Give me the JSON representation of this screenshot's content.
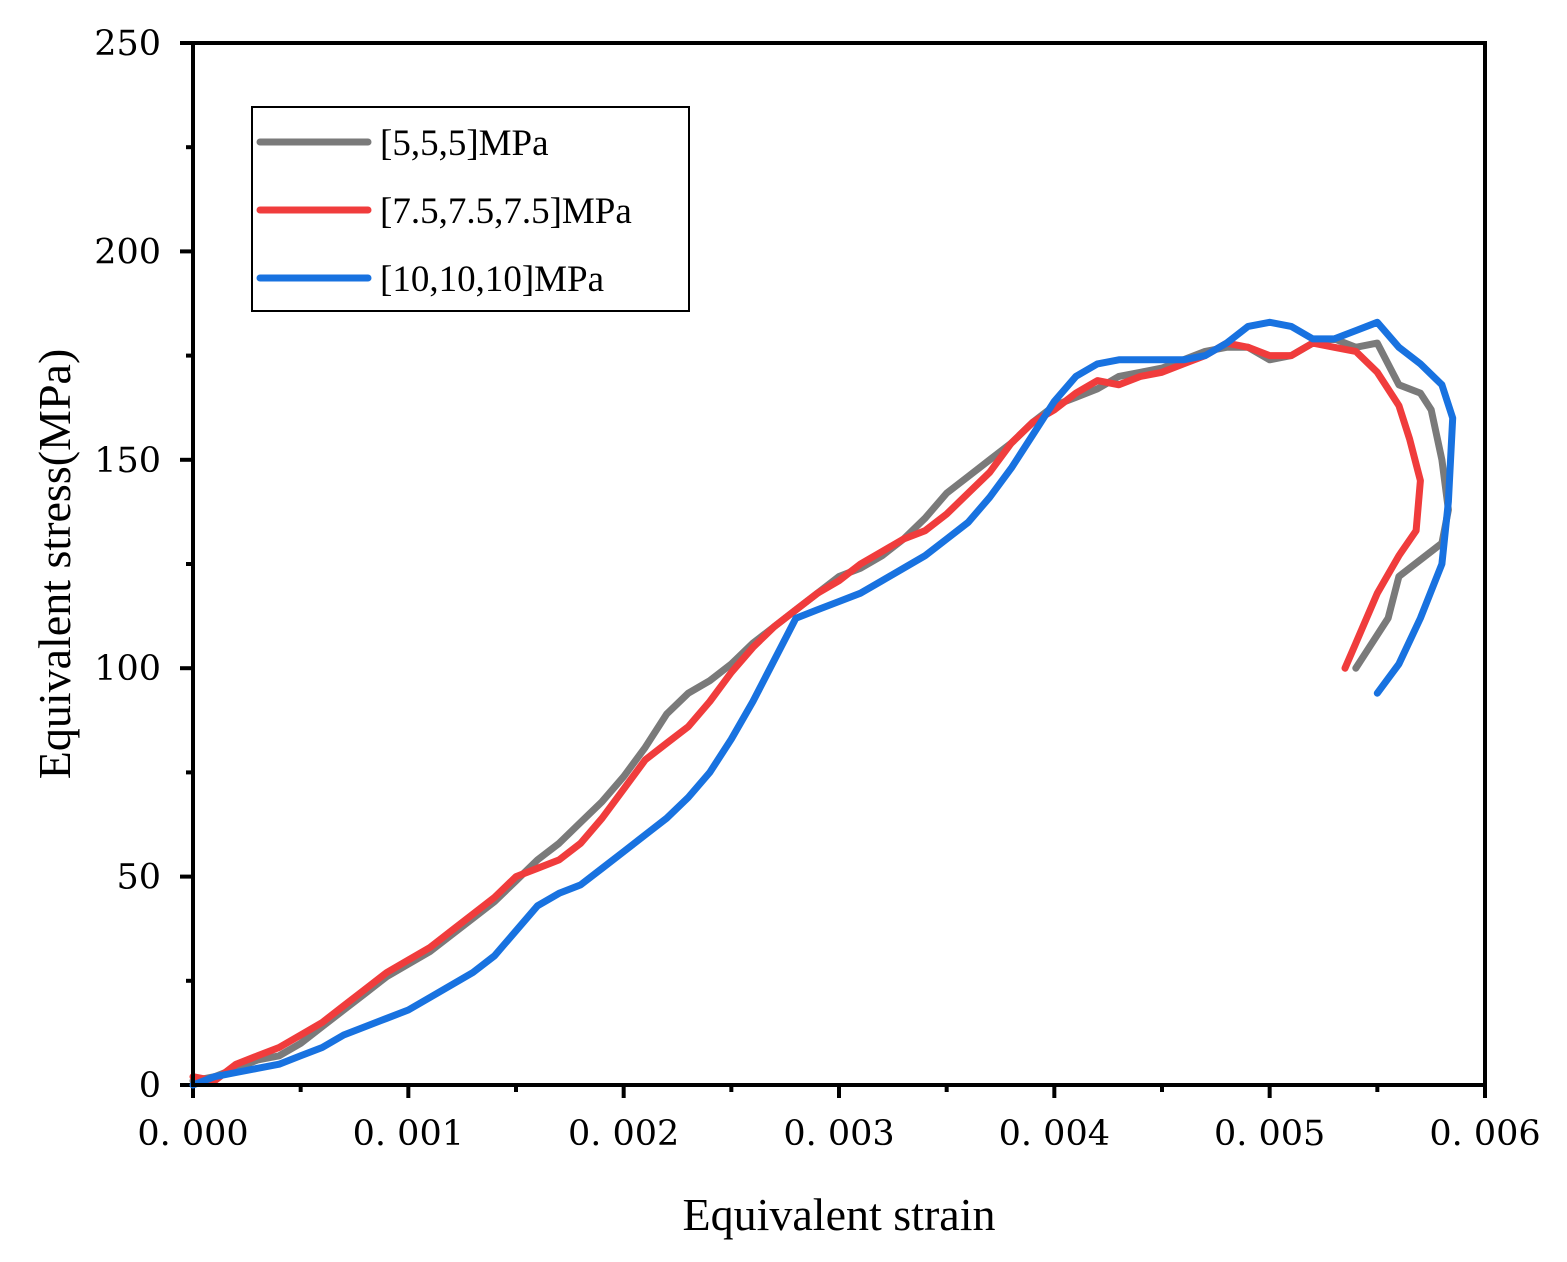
{
  "chart_data": {
    "type": "line",
    "title": "",
    "xlabel": "Equivalent strain",
    "ylabel": "Equivalent stress(MPa)",
    "xlim": [
      0,
      0.006
    ],
    "ylim": [
      0,
      250
    ],
    "x_ticks": [
      0,
      0.001,
      0.002,
      0.003,
      0.004,
      0.005,
      0.006
    ],
    "x_tick_labels": [
      "0. 000",
      "0. 001",
      "0. 002",
      "0. 003",
      "0. 004",
      "0. 005",
      "0. 006"
    ],
    "y_ticks": [
      0,
      50,
      100,
      150,
      200,
      250
    ],
    "y_tick_labels": [
      "0",
      "50",
      "100",
      "150",
      "200",
      "250"
    ],
    "grid": false,
    "legend_position": "top-left",
    "series": [
      {
        "name": "[5,5,5]MPa",
        "color": "#7a7a7a",
        "points": [
          [
            0.0,
            1
          ],
          [
            0.0001,
            2
          ],
          [
            0.0002,
            4
          ],
          [
            0.0003,
            6
          ],
          [
            0.0004,
            7
          ],
          [
            0.0005,
            10
          ],
          [
            0.0006,
            14
          ],
          [
            0.0007,
            18
          ],
          [
            0.0008,
            22
          ],
          [
            0.0009,
            26
          ],
          [
            0.001,
            29
          ],
          [
            0.0011,
            32
          ],
          [
            0.0012,
            36
          ],
          [
            0.0013,
            40
          ],
          [
            0.0014,
            44
          ],
          [
            0.0015,
            49
          ],
          [
            0.0016,
            54
          ],
          [
            0.0017,
            58
          ],
          [
            0.0018,
            63
          ],
          [
            0.0019,
            68
          ],
          [
            0.002,
            74
          ],
          [
            0.0021,
            81
          ],
          [
            0.0022,
            89
          ],
          [
            0.0023,
            94
          ],
          [
            0.0024,
            97
          ],
          [
            0.0025,
            101
          ],
          [
            0.0026,
            106
          ],
          [
            0.0027,
            110
          ],
          [
            0.0028,
            114
          ],
          [
            0.0029,
            118
          ],
          [
            0.003,
            122
          ],
          [
            0.0031,
            124
          ],
          [
            0.0032,
            127
          ],
          [
            0.0033,
            131
          ],
          [
            0.0034,
            136
          ],
          [
            0.0035,
            142
          ],
          [
            0.0036,
            146
          ],
          [
            0.0037,
            150
          ],
          [
            0.0038,
            154
          ],
          [
            0.0039,
            159
          ],
          [
            0.004,
            163
          ],
          [
            0.0041,
            165
          ],
          [
            0.0042,
            167
          ],
          [
            0.0043,
            170
          ],
          [
            0.0044,
            171
          ],
          [
            0.0045,
            172
          ],
          [
            0.0046,
            174
          ],
          [
            0.0047,
            176
          ],
          [
            0.0048,
            177
          ],
          [
            0.0049,
            177
          ],
          [
            0.005,
            174
          ],
          [
            0.0051,
            175
          ],
          [
            0.0052,
            178
          ],
          [
            0.0053,
            179
          ],
          [
            0.0054,
            177
          ],
          [
            0.0055,
            178
          ],
          [
            0.0056,
            168
          ],
          [
            0.0057,
            166
          ],
          [
            0.00575,
            162
          ],
          [
            0.0058,
            150
          ],
          [
            0.00583,
            138
          ],
          [
            0.0058,
            130
          ],
          [
            0.0057,
            126
          ],
          [
            0.0056,
            122
          ],
          [
            0.00555,
            112
          ],
          [
            0.0054,
            100
          ]
        ]
      },
      {
        "name": "[7.5,7.5,7.5]MPa",
        "color": "#f03c3c",
        "points": [
          [
            0.0,
            2
          ],
          [
            0.0001,
            1
          ],
          [
            0.0002,
            5
          ],
          [
            0.0003,
            7
          ],
          [
            0.0004,
            9
          ],
          [
            0.0005,
            12
          ],
          [
            0.0006,
            15
          ],
          [
            0.0007,
            19
          ],
          [
            0.0008,
            23
          ],
          [
            0.0009,
            27
          ],
          [
            0.001,
            30
          ],
          [
            0.0011,
            33
          ],
          [
            0.0012,
            37
          ],
          [
            0.0013,
            41
          ],
          [
            0.0014,
            45
          ],
          [
            0.0015,
            50
          ],
          [
            0.0016,
            52
          ],
          [
            0.0017,
            54
          ],
          [
            0.0018,
            58
          ],
          [
            0.0019,
            64
          ],
          [
            0.002,
            71
          ],
          [
            0.0021,
            78
          ],
          [
            0.0022,
            82
          ],
          [
            0.0023,
            86
          ],
          [
            0.0024,
            92
          ],
          [
            0.0025,
            99
          ],
          [
            0.0026,
            105
          ],
          [
            0.0027,
            110
          ],
          [
            0.0028,
            114
          ],
          [
            0.0029,
            118
          ],
          [
            0.003,
            121
          ],
          [
            0.0031,
            125
          ],
          [
            0.0032,
            128
          ],
          [
            0.0033,
            131
          ],
          [
            0.0034,
            133
          ],
          [
            0.0035,
            137
          ],
          [
            0.0036,
            142
          ],
          [
            0.0037,
            147
          ],
          [
            0.0038,
            154
          ],
          [
            0.0039,
            159
          ],
          [
            0.004,
            162
          ],
          [
            0.0041,
            166
          ],
          [
            0.0042,
            169
          ],
          [
            0.0043,
            168
          ],
          [
            0.0044,
            170
          ],
          [
            0.0045,
            171
          ],
          [
            0.0046,
            173
          ],
          [
            0.0047,
            175
          ],
          [
            0.0048,
            178
          ],
          [
            0.0049,
            177
          ],
          [
            0.005,
            175
          ],
          [
            0.0051,
            175
          ],
          [
            0.0052,
            178
          ],
          [
            0.0053,
            177
          ],
          [
            0.0054,
            176
          ],
          [
            0.0055,
            171
          ],
          [
            0.0056,
            163
          ],
          [
            0.00565,
            155
          ],
          [
            0.0057,
            145
          ],
          [
            0.00568,
            133
          ],
          [
            0.0056,
            127
          ],
          [
            0.0055,
            118
          ],
          [
            0.0054,
            106
          ],
          [
            0.00535,
            100
          ]
        ]
      },
      {
        "name": "[10,10,10]MPa",
        "color": "#1872e0",
        "points": [
          [
            0.0,
            0
          ],
          [
            0.0001,
            2
          ],
          [
            0.0002,
            3
          ],
          [
            0.0003,
            4
          ],
          [
            0.0004,
            5
          ],
          [
            0.0005,
            7
          ],
          [
            0.0006,
            9
          ],
          [
            0.0007,
            12
          ],
          [
            0.0008,
            14
          ],
          [
            0.0009,
            16
          ],
          [
            0.001,
            18
          ],
          [
            0.0011,
            21
          ],
          [
            0.0012,
            24
          ],
          [
            0.0013,
            27
          ],
          [
            0.0014,
            31
          ],
          [
            0.0015,
            37
          ],
          [
            0.0016,
            43
          ],
          [
            0.0017,
            46
          ],
          [
            0.0018,
            48
          ],
          [
            0.0019,
            52
          ],
          [
            0.002,
            56
          ],
          [
            0.0021,
            60
          ],
          [
            0.0022,
            64
          ],
          [
            0.0023,
            69
          ],
          [
            0.0024,
            75
          ],
          [
            0.0025,
            83
          ],
          [
            0.0026,
            92
          ],
          [
            0.0027,
            102
          ],
          [
            0.0028,
            112
          ],
          [
            0.0029,
            114
          ],
          [
            0.003,
            116
          ],
          [
            0.0031,
            118
          ],
          [
            0.0032,
            121
          ],
          [
            0.0033,
            124
          ],
          [
            0.0034,
            127
          ],
          [
            0.0035,
            131
          ],
          [
            0.0036,
            135
          ],
          [
            0.0037,
            141
          ],
          [
            0.0038,
            148
          ],
          [
            0.0039,
            156
          ],
          [
            0.004,
            164
          ],
          [
            0.0041,
            170
          ],
          [
            0.0042,
            173
          ],
          [
            0.0043,
            174
          ],
          [
            0.0044,
            174
          ],
          [
            0.0045,
            174
          ],
          [
            0.0046,
            174
          ],
          [
            0.0047,
            175
          ],
          [
            0.0048,
            178
          ],
          [
            0.0049,
            182
          ],
          [
            0.005,
            183
          ],
          [
            0.0051,
            182
          ],
          [
            0.0052,
            179
          ],
          [
            0.0053,
            179
          ],
          [
            0.0054,
            181
          ],
          [
            0.0055,
            183
          ],
          [
            0.0056,
            177
          ],
          [
            0.0057,
            173
          ],
          [
            0.0058,
            168
          ],
          [
            0.00585,
            160
          ],
          [
            0.00583,
            140
          ],
          [
            0.0058,
            125
          ],
          [
            0.0057,
            112
          ],
          [
            0.0056,
            101
          ],
          [
            0.0055,
            94
          ]
        ]
      }
    ]
  }
}
